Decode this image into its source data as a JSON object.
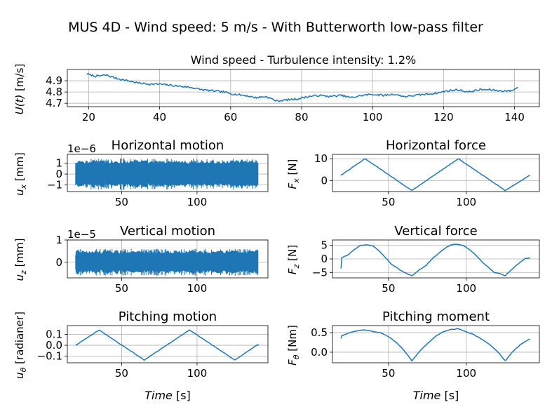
{
  "figure": {
    "title": "MUS 4D - Wind speed: 5 m/s - With Butterworth low-pass filter"
  },
  "colors": {
    "series": "#1f77b4",
    "grid": "#b0b0b0"
  },
  "chart_data": [
    {
      "id": "wind",
      "type": "line",
      "title": "Wind speed - Turbulence intensity: 1.2%",
      "ylabel": "U(t) [m/s]",
      "xlabel": "",
      "xlim": [
        14,
        147
      ],
      "ylim": [
        4.67,
        5.0
      ],
      "xticks": [
        20,
        40,
        60,
        80,
        100,
        120,
        140
      ],
      "yticks": [
        4.7,
        4.8,
        4.9
      ],
      "ytick_labels": [
        "4.7",
        "4.8",
        "4.9"
      ],
      "grid": true,
      "x": [
        19.5,
        22,
        25,
        28,
        31,
        34,
        37,
        40,
        43,
        46,
        49,
        52,
        55,
        58,
        61,
        64,
        67,
        70,
        73,
        76,
        79,
        82,
        85,
        88,
        91,
        94,
        97,
        100,
        103,
        106,
        109,
        112,
        115,
        118,
        121,
        124,
        127,
        130,
        133,
        136,
        139,
        141
      ],
      "values": [
        4.96,
        4.94,
        4.95,
        4.92,
        4.9,
        4.88,
        4.87,
        4.87,
        4.86,
        4.85,
        4.84,
        4.82,
        4.81,
        4.8,
        4.78,
        4.77,
        4.75,
        4.76,
        4.72,
        4.73,
        4.74,
        4.76,
        4.77,
        4.76,
        4.77,
        4.75,
        4.77,
        4.78,
        4.77,
        4.78,
        4.76,
        4.77,
        4.78,
        4.79,
        4.81,
        4.82,
        4.8,
        4.82,
        4.82,
        4.81,
        4.81,
        4.84
      ]
    },
    {
      "id": "horizontal-motion",
      "type": "line",
      "title": "Horizontal motion",
      "ylabel": "u_x [mm]",
      "offset_text": "1e−6",
      "xlim": [
        14,
        147
      ],
      "ylim": [
        -1.6,
        1.8
      ],
      "xticks": [
        50,
        100
      ],
      "yticks": [
        1,
        0,
        -1
      ],
      "ytick_labels": [
        "1",
        "0",
        "−1"
      ],
      "grid": true,
      "noise_band": {
        "x_start": 19.5,
        "x_end": 141,
        "amplitude": 1.3
      }
    },
    {
      "id": "horizontal-force",
      "type": "line",
      "title": "Horizontal force",
      "ylabel": "F_x [N]",
      "xlim": [
        14,
        147
      ],
      "ylim": [
        -5,
        12
      ],
      "xticks": [
        50,
        100
      ],
      "yticks": [
        10,
        0
      ],
      "ytick_labels": [
        "10",
        "0"
      ],
      "grid": true,
      "x": [
        19.5,
        35,
        65,
        95,
        125,
        141
      ],
      "values": [
        2.5,
        10,
        -4.5,
        10,
        -4.5,
        2.5
      ]
    },
    {
      "id": "vertical-motion",
      "type": "line",
      "title": "Vertical motion",
      "ylabel": "u_z [mm]",
      "offset_text": "1e−5",
      "xlim": [
        14,
        147
      ],
      "ylim": [
        -0.7,
        1.0
      ],
      "xticks": [
        50,
        100
      ],
      "yticks": [
        1,
        0
      ],
      "ytick_labels": [
        "1",
        "0"
      ],
      "grid": true,
      "noise_band": {
        "x_start": 19.5,
        "x_end": 141,
        "amplitude": 0.55
      }
    },
    {
      "id": "vertical-force",
      "type": "line",
      "title": "Vertical force",
      "ylabel": "F_z [N]",
      "xlim": [
        14,
        147
      ],
      "ylim": [
        -7,
        7
      ],
      "xticks": [
        50,
        100
      ],
      "yticks": [
        5,
        0,
        -5
      ],
      "ytick_labels": [
        "5",
        "0",
        "−5"
      ],
      "grid": true,
      "x": [
        19.5,
        20,
        24,
        28,
        32,
        36,
        40,
        44,
        48,
        52,
        56,
        60,
        65,
        70,
        74,
        78,
        82,
        86,
        90,
        94,
        98,
        102,
        106,
        110,
        114,
        118,
        122,
        125,
        130,
        134,
        138,
        141
      ],
      "values": [
        -3.5,
        0.5,
        1.5,
        3.5,
        5,
        5.2,
        4.8,
        3,
        0.5,
        -2,
        -3.5,
        -5,
        -6.2,
        -4,
        -2.5,
        0,
        2,
        3.8,
        5.2,
        5.5,
        5,
        3.5,
        1.5,
        -1,
        -3,
        -5,
        -5.5,
        -6.2,
        -3.5,
        -1.5,
        0.2,
        0.3
      ]
    },
    {
      "id": "pitching-motion",
      "type": "line",
      "title": "Pitching motion",
      "ylabel": "u_θ [radianer]",
      "xlabel": "Time [s]",
      "xlim": [
        14,
        147
      ],
      "ylim": [
        -0.16,
        0.18
      ],
      "xticks": [
        50,
        100
      ],
      "yticks": [
        0.1,
        0.0,
        -0.1
      ],
      "ytick_labels": [
        "0.1",
        "0.0",
        "−0.1"
      ],
      "grid": true,
      "x": [
        19.5,
        35,
        65,
        95,
        125,
        140,
        141
      ],
      "values": [
        0.0,
        0.14,
        -0.135,
        0.14,
        -0.135,
        0.005,
        0.0
      ]
    },
    {
      "id": "pitching-moment",
      "type": "line",
      "title": "Pitching moment",
      "ylabel": "F_θ [Nm]",
      "xlabel": "Time [s]",
      "xlim": [
        14,
        147
      ],
      "ylim": [
        -0.27,
        0.68
      ],
      "xticks": [
        50,
        100
      ],
      "yticks": [
        0.5,
        0.0
      ],
      "ytick_labels": [
        "0.5",
        "0.0"
      ],
      "grid": true,
      "x": [
        19.5,
        20,
        25,
        30,
        35,
        40,
        45,
        50,
        55,
        60,
        65,
        70,
        75,
        80,
        85,
        90,
        95,
        100,
        105,
        110,
        115,
        120,
        125,
        130,
        135,
        140,
        141
      ],
      "values": [
        0.35,
        0.42,
        0.5,
        0.55,
        0.57,
        0.53,
        0.5,
        0.4,
        0.25,
        0.05,
        -0.22,
        0.02,
        0.22,
        0.4,
        0.52,
        0.58,
        0.6,
        0.52,
        0.45,
        0.33,
        0.2,
        0.02,
        -0.22,
        0.02,
        0.2,
        0.32,
        0.33
      ]
    }
  ]
}
